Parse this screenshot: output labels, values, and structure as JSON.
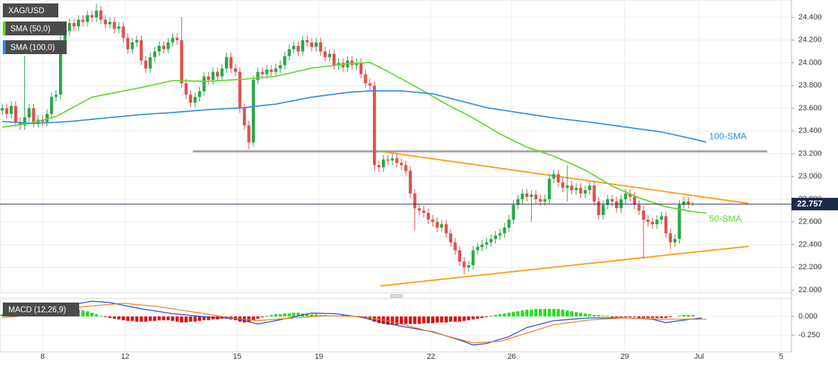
{
  "chart_data": [
    {
      "type": "candlestick",
      "title": "XAG/USD",
      "xlim": [
        -0.5,
        176
      ],
      "xticks": [
        {
          "value": 9,
          "label": "8"
        },
        {
          "value": 27.4,
          "label": "12"
        },
        {
          "value": 52.4,
          "label": "15"
        },
        {
          "value": 70.6,
          "label": "19"
        },
        {
          "value": 95.6,
          "label": "22"
        },
        {
          "value": 113.6,
          "label": "26"
        },
        {
          "value": 138.8,
          "label": "29"
        },
        {
          "value": 155.4,
          "label": "Jul"
        },
        {
          "value": 173.7,
          "label": "5"
        }
      ],
      "ylim": [
        21.976,
        24.553
      ],
      "yticks": [
        {
          "value": 22,
          "label": "22.000"
        },
        {
          "value": 22.2,
          "label": "22.200"
        },
        {
          "value": 22.4,
          "label": "22.400"
        },
        {
          "value": 22.6,
          "label": "22.600"
        },
        {
          "value": 22.8,
          "label": "22.800"
        },
        {
          "value": 23,
          "label": "23.000"
        },
        {
          "value": 23.2,
          "label": "23.200"
        },
        {
          "value": 23.4,
          "label": "23.400"
        },
        {
          "value": 23.6,
          "label": "23.600"
        },
        {
          "value": 23.8,
          "label": "23.800"
        },
        {
          "value": 24,
          "label": "24.000"
        },
        {
          "value": 24.2,
          "label": "24.200"
        },
        {
          "value": 24.4,
          "label": "24.400"
        }
      ],
      "grid": true,
      "up_color": "#26a844",
      "down_color": "#e0504a",
      "last_price": {
        "value": 22.757,
        "label": "22.757"
      },
      "candles": {
        "open": [
          23.58,
          23.6,
          23.55,
          23.62,
          23.48,
          23.45,
          23.52,
          23.6,
          23.47,
          23.5,
          23.48,
          23.55,
          23.7,
          23.72,
          24.2,
          24.28,
          24.35,
          24.32,
          24.38,
          24.36,
          24.42,
          24.4,
          24.46,
          24.38,
          24.34,
          24.36,
          24.3,
          24.32,
          24.22,
          24.12,
          24.18,
          24.2,
          24.02,
          23.95,
          24.05,
          24.1,
          24.15,
          24.12,
          24.18,
          24.22,
          24.2,
          23.82,
          23.72,
          23.65,
          23.7,
          23.75,
          23.88,
          23.85,
          23.92,
          23.88,
          23.95,
          24.05,
          23.95,
          23.92,
          23.6,
          23.45,
          23.3,
          23.85,
          23.92,
          23.9,
          23.94,
          23.92,
          23.95,
          23.98,
          24.06,
          24.12,
          24.15,
          24.1,
          24.2,
          24.18,
          24.14,
          24.18,
          24.1,
          24.05,
          24.08,
          23.98,
          24.0,
          23.96,
          24.02,
          23.98,
          24.0,
          23.9,
          23.82,
          23.8,
          23.1,
          23.08,
          23.15,
          23.14,
          23.16,
          23.12,
          23.1,
          23.05,
          22.85,
          22.72,
          22.7,
          22.68,
          22.62,
          22.6,
          22.55,
          22.58,
          22.5,
          22.42,
          22.35,
          22.25,
          22.2,
          22.22,
          22.35,
          22.38,
          22.4,
          22.42,
          22.45,
          22.48,
          22.5,
          22.55,
          22.62,
          22.75,
          22.8,
          22.85,
          22.82,
          22.84,
          22.8,
          22.78,
          22.8,
          22.98,
          23.02,
          22.95,
          22.9,
          22.92,
          22.88,
          22.9,
          22.85,
          22.88,
          22.92,
          22.78,
          22.66,
          22.75,
          22.8,
          22.78,
          22.72,
          22.8,
          22.85,
          22.82,
          22.75,
          22.7,
          22.62,
          22.6,
          22.58,
          22.62,
          22.65,
          22.5,
          22.42,
          22.45,
          22.75,
          22.78,
          22.76
        ],
        "high": [
          23.64,
          23.64,
          23.66,
          23.66,
          23.52,
          24.06,
          23.64,
          23.64,
          23.54,
          23.54,
          23.59,
          23.74,
          23.76,
          24.24,
          24.32,
          24.39,
          24.39,
          24.42,
          24.42,
          24.46,
          24.46,
          24.52,
          24.5,
          24.42,
          24.4,
          24.4,
          24.36,
          24.36,
          24.26,
          24.22,
          24.24,
          24.24,
          24.06,
          24.09,
          24.14,
          24.19,
          24.19,
          24.22,
          24.26,
          24.26,
          24.4,
          23.86,
          23.76,
          23.74,
          23.79,
          23.92,
          23.92,
          23.96,
          23.96,
          23.99,
          24.09,
          24.09,
          23.99,
          23.96,
          23.64,
          23.49,
          23.89,
          23.96,
          23.96,
          23.98,
          23.98,
          23.99,
          24.02,
          24.1,
          24.16,
          24.19,
          24.19,
          24.24,
          24.24,
          24.22,
          24.22,
          24.22,
          24.14,
          24.12,
          24.12,
          24.04,
          24.04,
          24.06,
          24.06,
          24.04,
          24.04,
          23.94,
          23.86,
          23.84,
          23.14,
          23.19,
          23.19,
          23.2,
          23.2,
          23.16,
          23.14,
          23.09,
          22.89,
          22.76,
          22.74,
          22.72,
          22.66,
          22.64,
          22.62,
          22.62,
          22.54,
          22.46,
          22.39,
          22.29,
          22.26,
          22.39,
          22.42,
          22.44,
          22.46,
          22.49,
          22.52,
          22.54,
          22.59,
          22.66,
          22.79,
          22.84,
          22.89,
          22.89,
          22.88,
          22.88,
          22.84,
          22.84,
          23.02,
          23.06,
          23.06,
          22.99,
          23.1,
          22.96,
          22.94,
          22.94,
          22.92,
          22.96,
          22.96,
          22.82,
          22.79,
          22.84,
          22.84,
          22.82,
          22.84,
          22.89,
          22.89,
          22.86,
          22.79,
          22.74,
          22.66,
          22.64,
          22.66,
          22.69,
          22.69,
          22.54,
          22.49,
          22.79,
          22.82,
          22.82,
          22.78
        ],
        "low": [
          23.54,
          23.51,
          23.51,
          23.44,
          23.41,
          23.41,
          23.48,
          23.43,
          23.43,
          23.44,
          23.44,
          23.51,
          23.66,
          23.68,
          24.16,
          24.24,
          24.28,
          24.28,
          24.32,
          24.32,
          24.36,
          24.36,
          24.34,
          24.3,
          24.3,
          24.26,
          24.26,
          24.18,
          24.08,
          24.08,
          24.14,
          23.98,
          23.91,
          23.91,
          24.01,
          24.06,
          24.08,
          24.08,
          24.14,
          24.16,
          23.78,
          23.68,
          23.61,
          23.61,
          23.66,
          23.71,
          23.81,
          23.81,
          23.84,
          23.84,
          23.91,
          23.91,
          23.88,
          23.56,
          23.41,
          23.24,
          23.26,
          23.81,
          23.86,
          23.86,
          23.88,
          23.88,
          23.91,
          23.94,
          24.02,
          24.08,
          24.06,
          24.06,
          24.14,
          24.1,
          24.1,
          24.06,
          24.01,
          24.01,
          23.94,
          23.94,
          23.92,
          23.92,
          23.94,
          23.94,
          23.86,
          23.78,
          23.76,
          23.05,
          23.04,
          23.04,
          23.1,
          23.1,
          23.08,
          23.06,
          23.01,
          22.81,
          22.53,
          22.66,
          22.64,
          22.58,
          22.56,
          22.51,
          22.51,
          22.46,
          22.38,
          22.31,
          22.21,
          22.14,
          22.16,
          22.18,
          22.31,
          22.34,
          22.36,
          22.38,
          22.41,
          22.44,
          22.46,
          22.51,
          22.58,
          22.71,
          22.76,
          22.78,
          22.6,
          22.76,
          22.74,
          22.74,
          22.76,
          22.94,
          22.91,
          22.86,
          22.78,
          22.84,
          22.84,
          22.81,
          22.81,
          22.84,
          22.74,
          22.62,
          22.62,
          22.71,
          22.74,
          22.68,
          22.68,
          22.76,
          22.78,
          22.71,
          22.66,
          22.28,
          22.56,
          22.54,
          22.54,
          22.58,
          22.46,
          22.36,
          22.38,
          22.41,
          22.71,
          22.72,
          22.74
        ],
        "close": [
          23.6,
          23.55,
          23.62,
          23.48,
          23.45,
          23.52,
          23.6,
          23.47,
          23.5,
          23.48,
          23.55,
          23.7,
          23.72,
          24.2,
          24.28,
          24.35,
          24.32,
          24.38,
          24.36,
          24.42,
          24.4,
          24.46,
          24.38,
          24.34,
          24.36,
          24.3,
          24.32,
          24.22,
          24.12,
          24.18,
          24.2,
          24.02,
          23.95,
          24.05,
          24.1,
          24.15,
          24.12,
          24.18,
          24.22,
          24.2,
          23.82,
          23.72,
          23.65,
          23.7,
          23.75,
          23.88,
          23.85,
          23.92,
          23.88,
          23.95,
          24.05,
          23.95,
          23.92,
          23.6,
          23.45,
          23.3,
          23.85,
          23.92,
          23.9,
          23.94,
          23.92,
          23.95,
          23.98,
          24.06,
          24.12,
          24.15,
          24.1,
          24.2,
          24.18,
          24.14,
          24.18,
          24.1,
          24.05,
          24.08,
          23.98,
          24.0,
          23.96,
          24.02,
          23.98,
          24.0,
          23.9,
          23.82,
          23.8,
          23.1,
          23.08,
          23.15,
          23.14,
          23.16,
          23.12,
          23.1,
          23.05,
          22.85,
          22.72,
          22.7,
          22.68,
          22.62,
          22.6,
          22.55,
          22.58,
          22.5,
          22.42,
          22.35,
          22.25,
          22.2,
          22.22,
          22.35,
          22.38,
          22.4,
          22.42,
          22.45,
          22.48,
          22.5,
          22.55,
          22.62,
          22.75,
          22.8,
          22.85,
          22.82,
          22.84,
          22.8,
          22.78,
          22.8,
          22.98,
          23.02,
          22.95,
          22.9,
          22.92,
          22.88,
          22.9,
          22.85,
          22.88,
          22.92,
          22.78,
          22.66,
          22.75,
          22.8,
          22.78,
          22.72,
          22.8,
          22.85,
          22.82,
          22.75,
          22.7,
          22.62,
          22.6,
          22.58,
          22.62,
          22.65,
          22.5,
          22.42,
          22.45,
          22.75,
          22.78,
          22.76,
          22.757
        ]
      },
      "series": [
        {
          "name": "SMA (50,0)",
          "label": "50-SMA",
          "color": "#5fd82e",
          "x": [
            0,
            6,
            12,
            20,
            31,
            38,
            46,
            54,
            61,
            69,
            77,
            82,
            86,
            92,
            99,
            105,
            111,
            117,
            123,
            130,
            136,
            142,
            148,
            154,
            157
          ],
          "values": [
            23.435,
            23.466,
            23.527,
            23.698,
            23.783,
            23.844,
            23.838,
            23.856,
            23.881,
            23.954,
            23.991,
            24.003,
            23.924,
            23.795,
            23.637,
            23.515,
            23.374,
            23.258,
            23.179,
            23.056,
            22.916,
            22.812,
            22.733,
            22.69,
            22.678
          ]
        },
        {
          "name": "SMA (100,0)",
          "label": "100-SMA",
          "color": "#2b8fe6",
          "x": [
            0,
            7,
            15,
            23,
            31,
            38,
            46,
            54,
            61,
            69,
            77,
            82,
            89,
            96,
            102,
            108,
            116,
            123,
            131,
            139,
            147,
            154,
            157
          ],
          "values": [
            23.484,
            23.466,
            23.484,
            23.515,
            23.545,
            23.563,
            23.588,
            23.606,
            23.637,
            23.698,
            23.74,
            23.753,
            23.753,
            23.728,
            23.667,
            23.606,
            23.557,
            23.515,
            23.478,
            23.435,
            23.392,
            23.331,
            23.301
          ]
        }
      ],
      "trendlines": [
        {
          "color": "#a0a0a0",
          "x": [
            42.5,
            170.6
          ],
          "values": [
            23.221,
            23.221
          ]
        },
        {
          "color": "#ff9d1a",
          "x": [
            84.3,
            166.4
          ],
          "values": [
            23.221,
            22.763
          ]
        },
        {
          "color": "#ff9d1a",
          "x": [
            84.3,
            166.4
          ],
          "values": [
            22.037,
            22.385
          ]
        }
      ]
    },
    {
      "type": "macd",
      "title": "MACD (12,26,9)",
      "ylim": [
        -0.472,
        0.241
      ],
      "yticks": [
        {
          "value": 0,
          "label": "0.000"
        },
        {
          "value": -0.25,
          "label": "-0.250"
        }
      ],
      "up_color": "#22e022",
      "down_color": "#e01010",
      "histogram": [
        0.03,
        0.04,
        0.04,
        0.05,
        0.05,
        0.06,
        0.07,
        0.07,
        0.08,
        0.08,
        0.09,
        0.09,
        0.1,
        0.11,
        0.11,
        0.1,
        0.1,
        0.09,
        0.08,
        0.07,
        0.05,
        0.03,
        0.01,
        -0.01,
        -0.02,
        -0.03,
        -0.04,
        -0.05,
        -0.06,
        -0.06,
        -0.07,
        -0.07,
        -0.07,
        -0.06,
        -0.06,
        -0.05,
        -0.05,
        -0.05,
        -0.06,
        -0.07,
        -0.08,
        -0.08,
        -0.07,
        -0.07,
        -0.06,
        -0.05,
        -0.05,
        -0.04,
        -0.04,
        -0.03,
        -0.03,
        -0.04,
        -0.05,
        -0.07,
        -0.08,
        -0.07,
        -0.05,
        -0.03,
        -0.01,
        0.01,
        0.02,
        0.03,
        0.03,
        0.04,
        0.04,
        0.05,
        0.05,
        0.04,
        0.04,
        0.03,
        0.03,
        0.02,
        0.02,
        0.01,
        0.01,
        0.01,
        0.02,
        0.01,
        0.01,
        0.0,
        -0.01,
        -0.02,
        -0.04,
        -0.07,
        -0.09,
        -0.1,
        -0.11,
        -0.11,
        -0.11,
        -0.1,
        -0.1,
        -0.1,
        -0.1,
        -0.1,
        -0.09,
        -0.09,
        -0.09,
        -0.08,
        -0.08,
        -0.08,
        -0.07,
        -0.07,
        -0.07,
        -0.06,
        -0.05,
        -0.04,
        -0.03,
        -0.02,
        -0.01,
        0.01,
        0.02,
        0.03,
        0.04,
        0.05,
        0.06,
        0.07,
        0.08,
        0.09,
        0.09,
        0.1,
        0.1,
        0.1,
        0.1,
        0.1,
        0.1,
        0.09,
        0.08,
        0.07,
        0.06,
        0.05,
        0.04,
        0.03,
        0.02,
        0.02,
        0.01,
        0.01,
        -0.01,
        -0.01,
        -0.01,
        -0.01,
        -0.01,
        -0.01,
        -0.02,
        -0.02,
        -0.02,
        -0.02,
        -0.02,
        -0.02,
        -0.02,
        -0.01,
        0.0,
        0.01,
        0.02,
        0.02,
        0.02
      ],
      "series": [
        {
          "color": "#1f3fd6",
          "x": [
            0,
            7,
            15,
            20,
            24,
            31,
            38,
            46,
            52,
            57,
            61,
            69,
            74,
            80,
            83,
            89,
            96,
            102,
            105,
            108,
            113,
            117,
            123,
            131,
            139,
            145,
            148,
            151,
            156
          ],
          "values": [
            0.009,
            0.074,
            0.148,
            0.204,
            0.185,
            0.102,
            0.037,
            -0.009,
            -0.028,
            -0.102,
            -0.056,
            0.046,
            0.037,
            -0.009,
            -0.056,
            -0.13,
            -0.204,
            -0.315,
            -0.38,
            -0.361,
            -0.269,
            -0.148,
            -0.056,
            -0.019,
            -0.019,
            -0.037,
            -0.083,
            -0.056,
            -0.019
          ]
        },
        {
          "color": "#f07a18",
          "x": [
            0,
            9,
            18,
            27,
            35,
            43,
            51,
            57,
            65,
            72,
            80,
            86,
            92,
            99,
            105,
            111,
            117,
            123,
            131,
            139,
            147,
            157
          ],
          "values": [
            -0.019,
            0.037,
            0.13,
            0.176,
            0.13,
            0.056,
            -0.019,
            -0.056,
            -0.019,
            0.009,
            0,
            -0.056,
            -0.148,
            -0.259,
            -0.352,
            -0.333,
            -0.222,
            -0.111,
            -0.046,
            -0.019,
            -0.037,
            -0.037
          ]
        }
      ]
    }
  ]
}
